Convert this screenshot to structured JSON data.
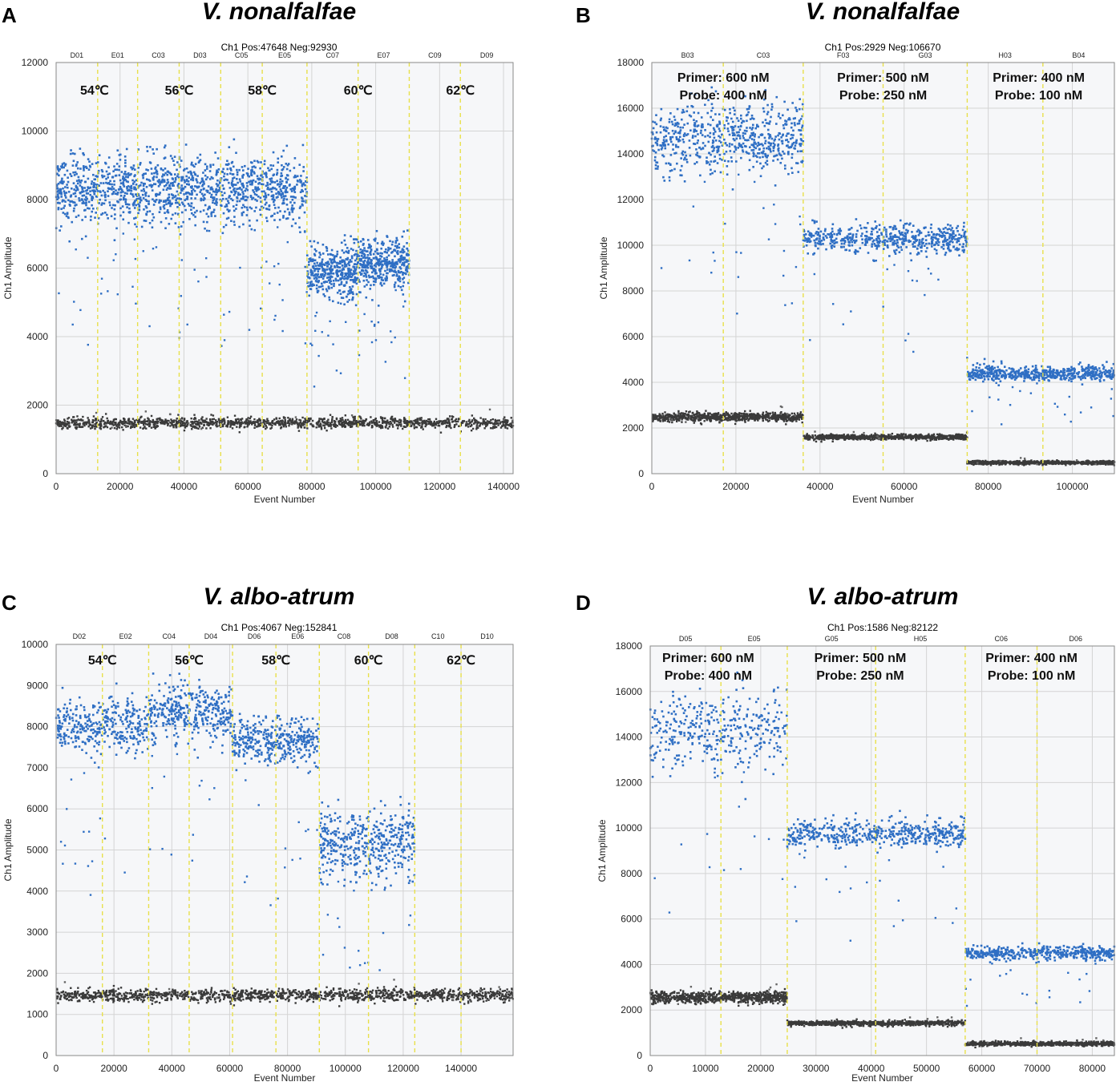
{
  "colors": {
    "positive": "#2f6fc4",
    "negative": "#3a3a3a",
    "threshold_line": "#e8e04a",
    "grid": "#d4d4d4",
    "plot_bg": "#f6f7f9"
  },
  "chart_data": [
    {
      "type": "scatter",
      "panel_label": "A",
      "species": "V. nonalfalfae",
      "title": "Ch1 Pos:47648 Neg:92930",
      "xlabel": "Event Number",
      "ylabel": "Ch1 Amplitude",
      "xlim": [
        0,
        143000
      ],
      "ylim": [
        0,
        12000
      ],
      "xticks": [
        0,
        20000,
        40000,
        60000,
        80000,
        100000,
        120000,
        140000
      ],
      "yticks": [
        0,
        2000,
        4000,
        6000,
        8000,
        10000,
        12000
      ],
      "wells": [
        "D01",
        "E01",
        "C03",
        "D03",
        "C05",
        "E05",
        "C07",
        "E07",
        "C09",
        "D09"
      ],
      "well_boundaries": [
        0,
        13000,
        25500,
        38500,
        51500,
        64500,
        78500,
        94500,
        110500,
        126500,
        143000
      ],
      "annotations": [
        {
          "lines": [
            "54℃"
          ],
          "x": 12000
        },
        {
          "lines": [
            "56℃"
          ],
          "x": 38500
        },
        {
          "lines": [
            "58℃"
          ],
          "x": 64500
        },
        {
          "lines": [
            "60℃"
          ],
          "x": 94500
        },
        {
          "lines": [
            "62℃"
          ],
          "x": 126500
        }
      ],
      "positive_clusters": [
        {
          "x_start": 0,
          "x_end": 78500,
          "mean": 8300,
          "spread": 500,
          "count": 1400
        },
        {
          "x_start": 78500,
          "x_end": 94500,
          "mean": 5900,
          "spread": 380,
          "count": 400
        },
        {
          "x_start": 94500,
          "x_end": 110500,
          "mean": 6150,
          "spread": 380,
          "count": 400
        }
      ],
      "negative_band": {
        "x_end": 143000,
        "mean": 1480,
        "spread": 80,
        "count": 1400
      }
    },
    {
      "type": "scatter",
      "panel_label": "B",
      "species": "V. nonalfalfae",
      "title": "Ch1 Pos:2929 Neg:106670",
      "xlabel": "Event Number",
      "ylabel": "Ch1 Amplitude",
      "xlim": [
        0,
        110000
      ],
      "ylim": [
        0,
        18000
      ],
      "xticks": [
        0,
        20000,
        40000,
        60000,
        80000,
        100000
      ],
      "yticks": [
        0,
        2000,
        4000,
        6000,
        8000,
        10000,
        12000,
        14000,
        16000,
        18000
      ],
      "wells": [
        "B03",
        "C03",
        "F03",
        "G03",
        "H03",
        "B04"
      ],
      "well_boundaries": [
        0,
        17000,
        36000,
        55000,
        75000,
        93000,
        110000
      ],
      "annotations": [
        {
          "lines": [
            "Primer: 600 nM",
            "Probe: 400 nM"
          ],
          "x": 17000
        },
        {
          "lines": [
            "Primer: 500 nM",
            "Probe: 250 nM"
          ],
          "x": 55000
        },
        {
          "lines": [
            "Primer: 400 nM",
            "Probe: 100 nM"
          ],
          "x": 92000
        }
      ],
      "positive_clusters": [
        {
          "x_start": 0,
          "x_end": 36000,
          "mean": 14600,
          "spread": 750,
          "count": 650
        },
        {
          "x_start": 36000,
          "x_end": 75000,
          "mean": 10300,
          "spread": 300,
          "count": 550
        },
        {
          "x_start": 75000,
          "x_end": 110000,
          "mean": 4380,
          "spread": 160,
          "count": 550
        }
      ],
      "negative_clusters": [
        {
          "x_start": 0,
          "x_end": 36000,
          "mean": 2480,
          "spread": 100,
          "count": 800
        },
        {
          "x_start": 36000,
          "x_end": 75000,
          "mean": 1600,
          "spread": 55,
          "count": 800
        },
        {
          "x_start": 75000,
          "x_end": 110000,
          "mean": 480,
          "spread": 40,
          "count": 800
        }
      ]
    },
    {
      "type": "scatter",
      "panel_label": "C",
      "species": "V. albo-atrum",
      "title": "Ch1 Pos:4067 Neg:152841",
      "xlabel": "Event Number",
      "ylabel": "Ch1 Amplitude",
      "xlim": [
        0,
        158000
      ],
      "ylim": [
        0,
        10000
      ],
      "xticks": [
        0,
        20000,
        40000,
        60000,
        80000,
        100000,
        120000,
        140000
      ],
      "yticks": [
        0,
        1000,
        2000,
        3000,
        4000,
        5000,
        6000,
        7000,
        8000,
        9000,
        10000
      ],
      "wells": [
        "D02",
        "E02",
        "C04",
        "D04",
        "D06",
        "E06",
        "C08",
        "D08",
        "C10",
        "D10"
      ],
      "well_boundaries": [
        0,
        16000,
        32000,
        46000,
        61000,
        76000,
        91000,
        108000,
        124000,
        140000,
        158000
      ],
      "annotations": [
        {
          "lines": [
            "54℃"
          ],
          "x": 16000
        },
        {
          "lines": [
            "56℃"
          ],
          "x": 46000
        },
        {
          "lines": [
            "58℃"
          ],
          "x": 76000
        },
        {
          "lines": [
            "60℃"
          ],
          "x": 108000
        },
        {
          "lines": [
            "62℃"
          ],
          "x": 140000
        }
      ],
      "positive_clusters": [
        {
          "x_start": 0,
          "x_end": 32000,
          "mean": 8000,
          "spread": 330,
          "count": 380
        },
        {
          "x_start": 32000,
          "x_end": 61000,
          "mean": 8350,
          "spread": 330,
          "count": 380
        },
        {
          "x_start": 61000,
          "x_end": 91000,
          "mean": 7650,
          "spread": 280,
          "count": 380
        },
        {
          "x_start": 91000,
          "x_end": 124000,
          "mean": 5150,
          "spread": 420,
          "count": 450
        }
      ],
      "negative_band": {
        "x_end": 158000,
        "mean": 1470,
        "spread": 75,
        "count": 1400
      }
    },
    {
      "type": "scatter",
      "panel_label": "D",
      "species": "V. albo-atrum",
      "title": "Ch1 Pos:1586 Neg:82122",
      "xlabel": "Event Number",
      "ylabel": "Ch1 Amplitude",
      "xlim": [
        0,
        84000
      ],
      "ylim": [
        0,
        18000
      ],
      "xticks": [
        0,
        10000,
        20000,
        30000,
        40000,
        50000,
        60000,
        70000,
        80000
      ],
      "yticks": [
        0,
        2000,
        4000,
        6000,
        8000,
        10000,
        12000,
        14000,
        16000,
        18000
      ],
      "wells": [
        "D05",
        "E05",
        "G05",
        "H05",
        "C06",
        "D06"
      ],
      "well_boundaries": [
        0,
        12800,
        24800,
        40800,
        57000,
        70000,
        84000
      ],
      "annotations": [
        {
          "lines": [
            "Primer: 600 nM",
            "Probe: 400 nM"
          ],
          "x": 10500
        },
        {
          "lines": [
            "Primer: 500 nM",
            "Probe: 250 nM"
          ],
          "x": 38000
        },
        {
          "lines": [
            "Primer: 400 nM",
            "Probe: 100 nM"
          ],
          "x": 69000
        }
      ],
      "positive_clusters": [
        {
          "x_start": 0,
          "x_end": 24800,
          "mean": 14300,
          "spread": 800,
          "count": 380
        },
        {
          "x_start": 24800,
          "x_end": 57000,
          "mean": 9750,
          "spread": 320,
          "count": 500
        },
        {
          "x_start": 57000,
          "x_end": 84000,
          "mean": 4500,
          "spread": 150,
          "count": 450
        }
      ],
      "negative_clusters": [
        {
          "x_start": 0,
          "x_end": 24800,
          "mean": 2550,
          "spread": 120,
          "count": 800
        },
        {
          "x_start": 24800,
          "x_end": 57000,
          "mean": 1420,
          "spread": 55,
          "count": 800
        },
        {
          "x_start": 57000,
          "x_end": 84000,
          "mean": 520,
          "spread": 45,
          "count": 800
        }
      ]
    }
  ]
}
